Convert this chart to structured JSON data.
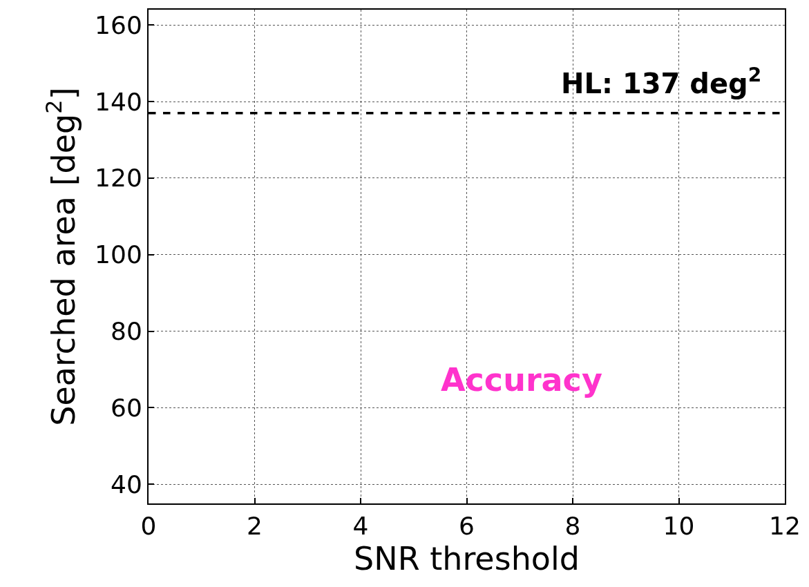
{
  "chart_data": {
    "type": "line",
    "xlabel": "SNR threshold",
    "ylabel": "Searched area [deg$^{2}$]",
    "xlim": [
      0,
      12
    ],
    "xticks": [
      0,
      2,
      4,
      6,
      8,
      10,
      12
    ],
    "ylim": [
      35,
      164
    ],
    "yticks": [
      40,
      60,
      80,
      100,
      120,
      140,
      160
    ],
    "grid": true,
    "ref_lines": [
      {
        "axis": "y",
        "value": 137,
        "label": "HL: 137 deg$^{2}$",
        "color": "#000000",
        "line_style": "dashed"
      }
    ],
    "annotations": [
      "Accuracy"
    ]
  }
}
